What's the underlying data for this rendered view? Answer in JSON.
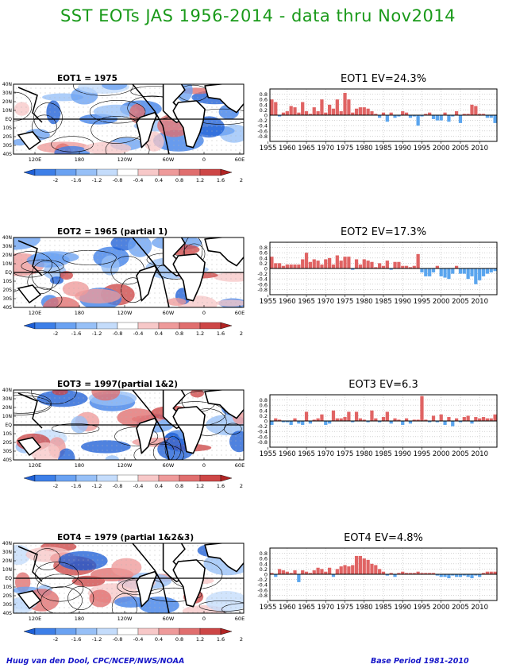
{
  "main_title": "SST EOTs JAS 1956-2014 - data thru Nov2014",
  "footer": {
    "credit": "Huug van den Dool, CPC/NCEP/NWS/NOAA",
    "base_period": "Base Period 1981-2010"
  },
  "map_axes": {
    "lat_labels": [
      "40N",
      "30N",
      "20N",
      "10N",
      "EQ",
      "10S",
      "20S",
      "30S",
      "40S"
    ],
    "lon_labels": [
      "120E",
      "180",
      "120W",
      "60W",
      "0",
      "60E"
    ]
  },
  "colorbar": {
    "labels": [
      "-2",
      "-1.6",
      "-1.2",
      "-0.8",
      "-0.4",
      "0.4",
      "0.8",
      "1.2",
      "1.6",
      "2"
    ],
    "colors": [
      "#1e5fd6",
      "#3d7fe8",
      "#6aa2f2",
      "#97c0f7",
      "#c4dcfb",
      "#ffffff",
      "#f7c8c8",
      "#ee9a9a",
      "#e06e6e",
      "#cd4646",
      "#b02424"
    ]
  },
  "series_colors": {
    "positive": "#e06464",
    "negative": "#5aa5ee"
  },
  "panels": [
    {
      "map_title": "EOT1   = 1975",
      "ts_title": "EOT1  EV=24.3%"
    },
    {
      "map_title": "EOT2   = 1965 (partial 1)",
      "ts_title": "EOT2  EV=17.3%"
    },
    {
      "map_title": "EOT3   = 1997(partial 1&2)",
      "ts_title": "EOT3  EV=6.3"
    },
    {
      "map_title": "EOT4   = 1979 (partial 1&2&3)",
      "ts_title": "EOT4  EV=4.8%"
    }
  ],
  "chart_data": [
    {
      "type": "bar",
      "title": "EOT1  EV=24.3%",
      "xlabel": "",
      "ylabel": "",
      "x_start": 1956,
      "x_ticks": [
        "1955",
        "1960",
        "1965",
        "1970",
        "1975",
        "1980",
        "1985",
        "1990",
        "1995",
        "2000",
        "2005",
        "2010"
      ],
      "y_ticks": [
        "0.8",
        "0.6",
        "0.4",
        "0.2",
        "0",
        "-0.2",
        "-0.4",
        "-0.6",
        "-0.8"
      ],
      "ylim": [
        -1,
        1
      ],
      "grid": true,
      "values": [
        0.6,
        0.5,
        -0.05,
        0.1,
        0.15,
        0.35,
        0.3,
        0.1,
        0.5,
        0.15,
        0.05,
        0.3,
        0.15,
        0.6,
        0.1,
        0.4,
        0.25,
        0.6,
        0.15,
        0.85,
        0.6,
        0.1,
        0.25,
        0.3,
        0.3,
        0.25,
        0.15,
        0.05,
        -0.1,
        0.1,
        -0.25,
        0.1,
        -0.1,
        -0.05,
        0.15,
        0.1,
        -0.1,
        -0.05,
        -0.4,
        -0.05,
        0.05,
        0.1,
        -0.15,
        -0.2,
        -0.2,
        0.1,
        -0.25,
        -0.05,
        0.15,
        -0.3,
        0.05,
        0.05,
        0.4,
        0.35,
        0.05,
        0.05,
        -0.1,
        -0.1,
        -0.3
      ]
    },
    {
      "type": "bar",
      "title": "EOT2  EV=17.3%",
      "xlabel": "",
      "ylabel": "",
      "x_start": 1956,
      "x_ticks": [
        "1955",
        "1960",
        "1965",
        "1970",
        "1975",
        "1980",
        "1985",
        "1990",
        "1995",
        "2000",
        "2005",
        "2010"
      ],
      "y_ticks": [
        "0.8",
        "0.6",
        "0.4",
        "0.2",
        "0",
        "-0.2",
        "-0.4",
        "-0.6",
        "-0.8"
      ],
      "ylim": [
        -1,
        1
      ],
      "grid": true,
      "values": [
        0.45,
        0.2,
        0.2,
        0.1,
        0.15,
        0.15,
        0.15,
        0.15,
        0.35,
        0.6,
        0.25,
        0.35,
        0.3,
        0.15,
        0.35,
        0.4,
        0.15,
        0.5,
        0.3,
        0.45,
        0.45,
        -0.05,
        0.35,
        0.15,
        0.35,
        0.3,
        0.25,
        0.05,
        0.2,
        0.1,
        0.3,
        -0.05,
        0.25,
        0.25,
        0.1,
        0.1,
        0.05,
        0.1,
        0.55,
        -0.15,
        -0.3,
        -0.3,
        -0.15,
        0.1,
        -0.3,
        -0.35,
        -0.4,
        -0.2,
        0.1,
        -0.2,
        -0.2,
        -0.4,
        -0.3,
        -0.6,
        -0.45,
        -0.3,
        -0.2,
        -0.15,
        -0.1
      ]
    },
    {
      "type": "bar",
      "title": "EOT3  EV=6.3",
      "xlabel": "",
      "ylabel": "",
      "x_start": 1956,
      "x_ticks": [
        "1955",
        "1960",
        "1965",
        "1970",
        "1975",
        "1980",
        "1985",
        "1990",
        "1995",
        "2000",
        "2005",
        "2010"
      ],
      "y_ticks": [
        "0.8",
        "0.6",
        "0.4",
        "0.2",
        "0",
        "-0.2",
        "-0.4",
        "-0.6",
        "-0.8"
      ],
      "ylim": [
        -1,
        1
      ],
      "grid": true,
      "values": [
        -0.15,
        0.1,
        0.05,
        -0.05,
        -0.05,
        -0.15,
        0.1,
        -0.1,
        -0.15,
        0.35,
        -0.1,
        0.05,
        0.1,
        0.25,
        -0.15,
        -0.1,
        0.4,
        0.1,
        0.1,
        0.15,
        0.35,
        -0.05,
        0.35,
        0.1,
        0.05,
        -0.05,
        0.4,
        0.1,
        -0.05,
        0.15,
        0.35,
        -0.1,
        0.1,
        0.05,
        -0.15,
        0.1,
        -0.1,
        0.05,
        0.05,
        0.95,
        0.05,
        -0.05,
        0.2,
        -0.05,
        0.25,
        -0.15,
        0.15,
        -0.2,
        0.1,
        -0.05,
        0.15,
        0.2,
        -0.1,
        0.15,
        0.1,
        0.15,
        0.1,
        0.1,
        0.25
      ]
    },
    {
      "type": "bar",
      "title": "EOT4  EV=4.8%",
      "xlabel": "",
      "ylabel": "",
      "x_start": 1956,
      "x_ticks": [
        "1955",
        "1960",
        "1965",
        "1970",
        "1975",
        "1980",
        "1985",
        "1990",
        "1995",
        "2000",
        "2005",
        "2010"
      ],
      "y_ticks": [
        "0.8",
        "0.6",
        "0.4",
        "0.2",
        "0",
        "-0.2",
        "-0.4",
        "-0.6",
        "-0.8"
      ],
      "ylim": [
        -1,
        1
      ],
      "grid": true,
      "values": [
        0.05,
        -0.1,
        0.2,
        0.15,
        0.1,
        0.05,
        0.15,
        -0.3,
        0.15,
        0.1,
        0.05,
        0.15,
        0.25,
        0.2,
        0.1,
        0.25,
        -0.1,
        0.2,
        0.3,
        0.35,
        0.3,
        0.35,
        0.7,
        0.7,
        0.6,
        0.55,
        0.4,
        0.35,
        0.2,
        0.1,
        -0.05,
        0.05,
        -0.1,
        0.05,
        0.1,
        0.05,
        0.05,
        0.05,
        0.1,
        0.05,
        0.05,
        0.05,
        0.05,
        -0.05,
        -0.1,
        -0.1,
        -0.15,
        -0.05,
        -0.1,
        -0.1,
        -0.05,
        -0.1,
        -0.15,
        -0.05,
        -0.1,
        0.05,
        0.1,
        0.1,
        0.1
      ]
    }
  ]
}
